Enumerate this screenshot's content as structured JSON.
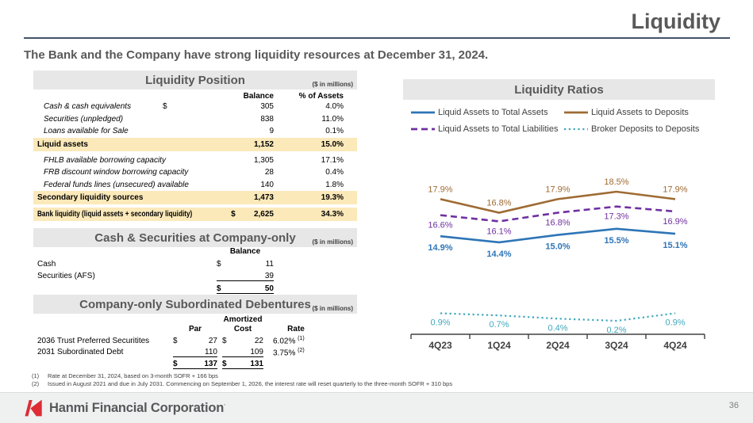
{
  "slide": {
    "title": "Liquidity",
    "subtitle": "The Bank and the Company have strong liquidity resources at December 31, 2024.",
    "page_number": "36"
  },
  "theme": {
    "highlight_yellow": "#FBE9BA",
    "section_bar_gray": "#E7E7E7",
    "logo_red": "#DD2C34",
    "rule_color": "#44546A"
  },
  "liquidity_position": {
    "title": "Liquidity Position",
    "units": "($ in millions)",
    "col_headers": {
      "balance": "Balance",
      "pct": "% of Assets"
    },
    "rows": [
      {
        "label": "Cash & cash equivalents",
        "sym": "$",
        "balance": "305",
        "pct": "4.0%",
        "cls": "item"
      },
      {
        "label": "Securities (unpledged)",
        "sym": "",
        "balance": "838",
        "pct": "11.0%",
        "cls": "item"
      },
      {
        "label": "Loans available for Sale",
        "sym": "",
        "balance": "9",
        "pct": "0.1%",
        "cls": "item"
      },
      {
        "label": "Liquid assets",
        "sym": "",
        "balance": "1,152",
        "pct": "15.0%",
        "cls": "hl"
      },
      {
        "label": "FHLB available borrowing capacity",
        "sym": "",
        "balance": "1,305",
        "pct": "17.1%",
        "cls": "item gap"
      },
      {
        "label": "FRB discount window borrowing capacity",
        "sym": "",
        "balance": "28",
        "pct": "0.4%",
        "cls": "item"
      },
      {
        "label": "Federal funds lines (unsecured) available",
        "sym": "",
        "balance": "140",
        "pct": "1.8%",
        "cls": "item"
      },
      {
        "label": "Secondary liquidity sources",
        "sym": "",
        "balance": "1,473",
        "pct": "19.3%",
        "cls": "hl"
      },
      {
        "label": "Bank liquidity (liquid assets + secondary liquidity)",
        "sym": "$",
        "balance": "2,625",
        "pct": "34.3%",
        "cls": "hl gap symline squeeze"
      }
    ]
  },
  "company_cash": {
    "title": "Cash & Securities at Company-only",
    "units": "($ in millions)",
    "col_header": "Balance",
    "rows": [
      {
        "label": "Cash",
        "sym": "$",
        "value": "11",
        "cls": ""
      },
      {
        "label": "Securities (AFS)",
        "sym": "",
        "value": "39",
        "cls": "u"
      }
    ],
    "total": {
      "sym": "$",
      "value": "50"
    }
  },
  "subordinated_debentures": {
    "title": "Company-only Subordinated Debentures",
    "units": "($ in millions)",
    "headers": {
      "amortized": "Amortized",
      "par": "Par",
      "cost": "Cost",
      "rate": "Rate"
    },
    "rows": [
      {
        "label": "2036 Trust Preferred Securitites",
        "par_sym": "$",
        "par": "27",
        "cost_sym": "$",
        "cost": "22",
        "rate": "6.02%",
        "rate_note": "(1)",
        "cls": ""
      },
      {
        "label": "2031 Subordinated Debt",
        "par_sym": "",
        "par": "110",
        "cost_sym": "",
        "cost": "109",
        "rate": "3.75%",
        "rate_note": "(2)",
        "cls": "u"
      }
    ],
    "total": {
      "par_sym": "$",
      "par": "137",
      "cost_sym": "$",
      "cost": "131"
    }
  },
  "chart_data": {
    "type": "line",
    "title": "Liquidity Ratios",
    "categories": [
      "4Q23",
      "1Q24",
      "2Q24",
      "3Q24",
      "4Q24"
    ],
    "unit": "%",
    "grid": false,
    "legend_position": "top",
    "series": [
      {
        "name": "Liquid Assets to Total Assets",
        "values": [
          14.9,
          14.4,
          15.0,
          15.5,
          15.1
        ],
        "labels": [
          "14.9%",
          "14.4%",
          "15.0%",
          "15.5%",
          "15.1%"
        ],
        "color": "#2E75B6",
        "style": "solid",
        "label_side": "below",
        "label_bold": true,
        "label_dy": 18
      },
      {
        "name": "Liquid Assets to Deposits",
        "values": [
          17.9,
          16.8,
          17.9,
          18.5,
          17.9
        ],
        "labels": [
          "17.9%",
          "16.8%",
          "17.9%",
          "18.5%",
          "17.9%"
        ],
        "color": "#9E6B33",
        "style": "solid",
        "label_side": "above",
        "label_bold": false,
        "label_dy": -9
      },
      {
        "name": "Liquid Assets to Total Liabilities",
        "values": [
          16.6,
          16.1,
          16.8,
          17.3,
          16.9
        ],
        "labels": [
          "16.6%",
          "16.1%",
          "16.8%",
          "17.3%",
          "16.9%"
        ],
        "color": "#7030A0",
        "style": "dashed",
        "label_side": "below",
        "label_bold": false,
        "label_dy": 16
      },
      {
        "name": "Broker Deposits to Deposits",
        "values": [
          0.9,
          0.7,
          0.4,
          0.2,
          0.9
        ],
        "labels": [
          "0.9%",
          "0.7%",
          "0.4%",
          "0.2%",
          "0.9%"
        ],
        "color": "#3FA8BC",
        "style": "dotted",
        "label_side": "below",
        "label_bold": false,
        "label_dy": 15
      }
    ]
  },
  "footnotes": [
    {
      "num": "(1)",
      "text": "Rate at December 31, 2024, based on 3-month SOFR + 166 bps"
    },
    {
      "num": "(2)",
      "text": "Issued in August 2021 and due in July 2031. Commencing on September 1, 2026, the interest rate will reset quarterly to the three-month SOFR + 310 bps"
    }
  ],
  "footer": {
    "brand": "Hanmi Financial Corporation",
    "brand_mark": "·"
  }
}
